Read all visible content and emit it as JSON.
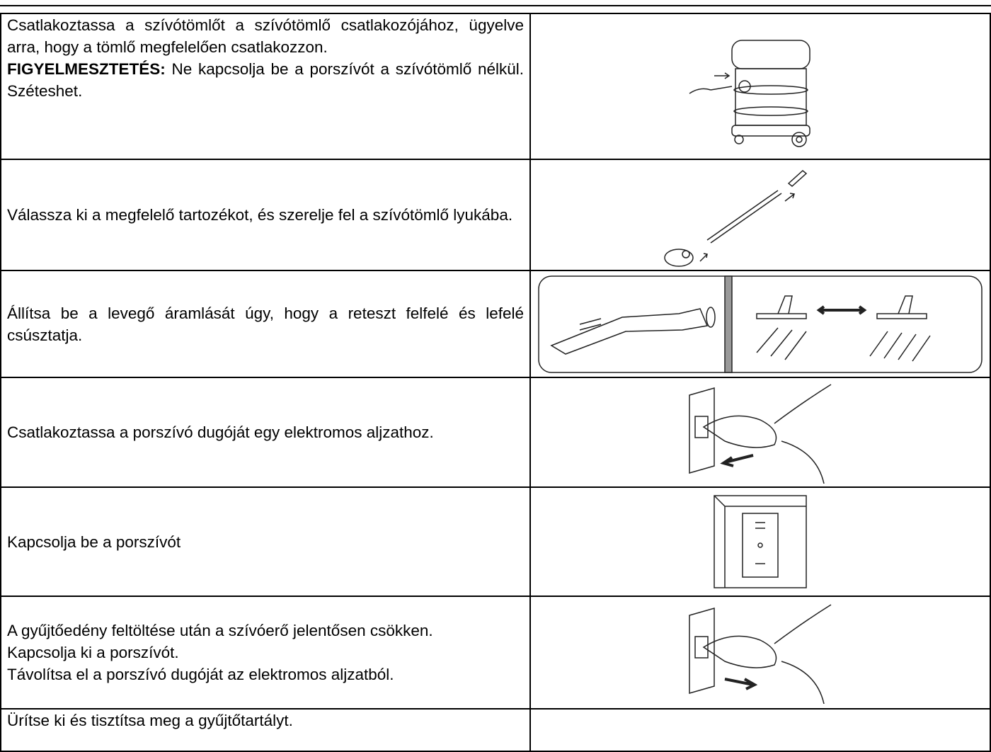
{
  "rows": [
    {
      "paragraphs": [
        "Csatlakoztassa a szívótömlőt a szívótömlő csatlakozójához, ügyelve arra, hogy a tömlő megfelelően csatlakozzon."
      ],
      "warning": {
        "label": "FIGYELMESZTETÉS:",
        "text": "Ne kapcsolja be a porszívót a szívótömlő nélkül. Széteshet."
      }
    },
    {
      "paragraphs": [
        "Válassza ki a megfelelő tartozékot, és szerelje fel a szívótömlő lyukába."
      ]
    },
    {
      "paragraphs": [
        "Állítsa be a levegő áramlását úgy, hogy a reteszt felfelé és lefelé csúsztatja."
      ]
    },
    {
      "paragraphs": [
        "Csatlakoztassa a porszívó dugóját egy elektromos aljzathoz."
      ]
    },
    {
      "paragraphs": [
        "Kapcsolja be a porszívót"
      ]
    },
    {
      "paragraphs": [
        "A gyűjtőedény feltöltése után a szívóerő jelentősen csökken.",
        "Kapcsolja ki a porszívót.",
        "Távolítsa el a porszívó dugóját az elektromos aljzatból."
      ]
    },
    {
      "paragraphs": [
        "Ürítse ki és tisztítsa meg a gyűjtőtartályt."
      ]
    }
  ]
}
